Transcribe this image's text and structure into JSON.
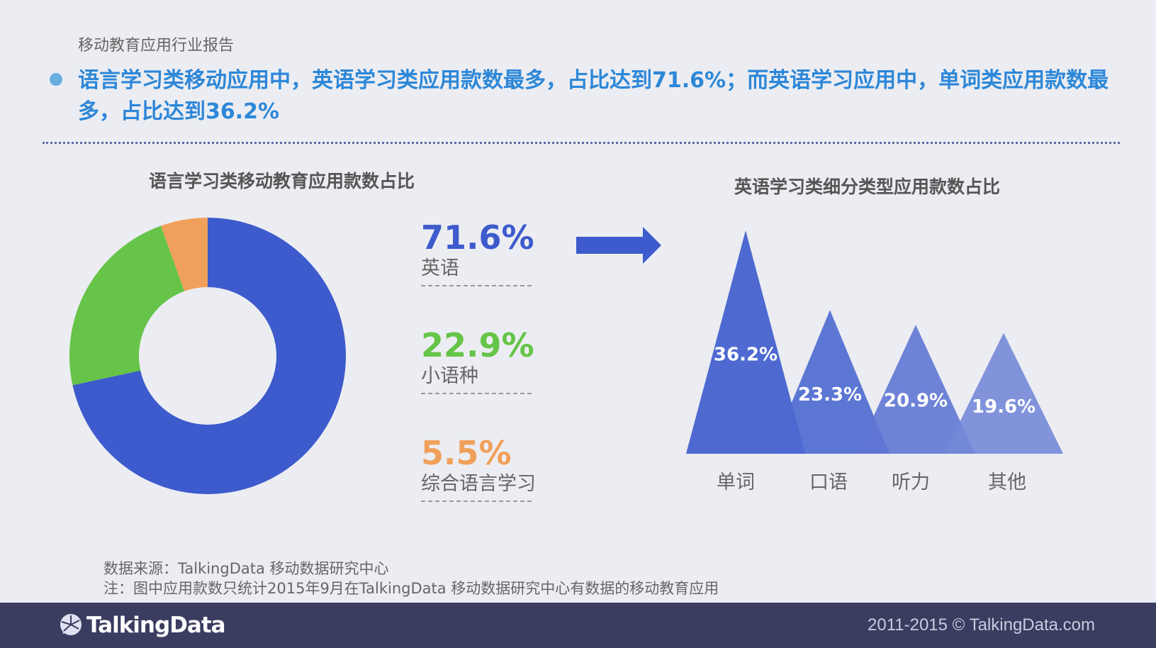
{
  "report_label": "移动教育应用行业报告",
  "headline": "语言学习类移动应用中，英语学习类应用款数最多，占比达到71.6%；而英语学习应用中，单词类应用款数最多，占比达到36.2%",
  "colors": {
    "english": "#3d5bcc",
    "minor": "#66c449",
    "comprehensive": "#f0a05a",
    "headline": "#2d87d8",
    "arrow": "#3d5bcc"
  },
  "chart_data": [
    {
      "type": "pie",
      "title": "语言学习类移动教育应用款数占比",
      "donut": true,
      "slices": [
        {
          "label": "英语",
          "value": 71.6,
          "display": "71.6%"
        },
        {
          "label": "小语种",
          "value": 22.9,
          "display": "22.9%"
        },
        {
          "label": "综合语言学习",
          "value": 5.5,
          "display": "5.5%"
        }
      ]
    },
    {
      "type": "bar",
      "style": "triangle-peaks",
      "title": "英语学习类细分类型应用款数占比",
      "categories": [
        "单词",
        "口语",
        "听力",
        "其他"
      ],
      "values": [
        36.2,
        23.3,
        20.9,
        19.6
      ],
      "display": [
        "36.2%",
        "23.3%",
        "20.9%",
        "19.6%"
      ]
    }
  ],
  "footnotes": {
    "source": "数据来源：TalkingData 移动数据研究中心",
    "note": "注：图中应用款数只统计2015年9月在TalkingData  移动数据研究中心有数据的移动教育应用"
  },
  "footer": {
    "logo_text": "TalkingData",
    "copyright": "2011-2015 © TalkingData.com"
  }
}
